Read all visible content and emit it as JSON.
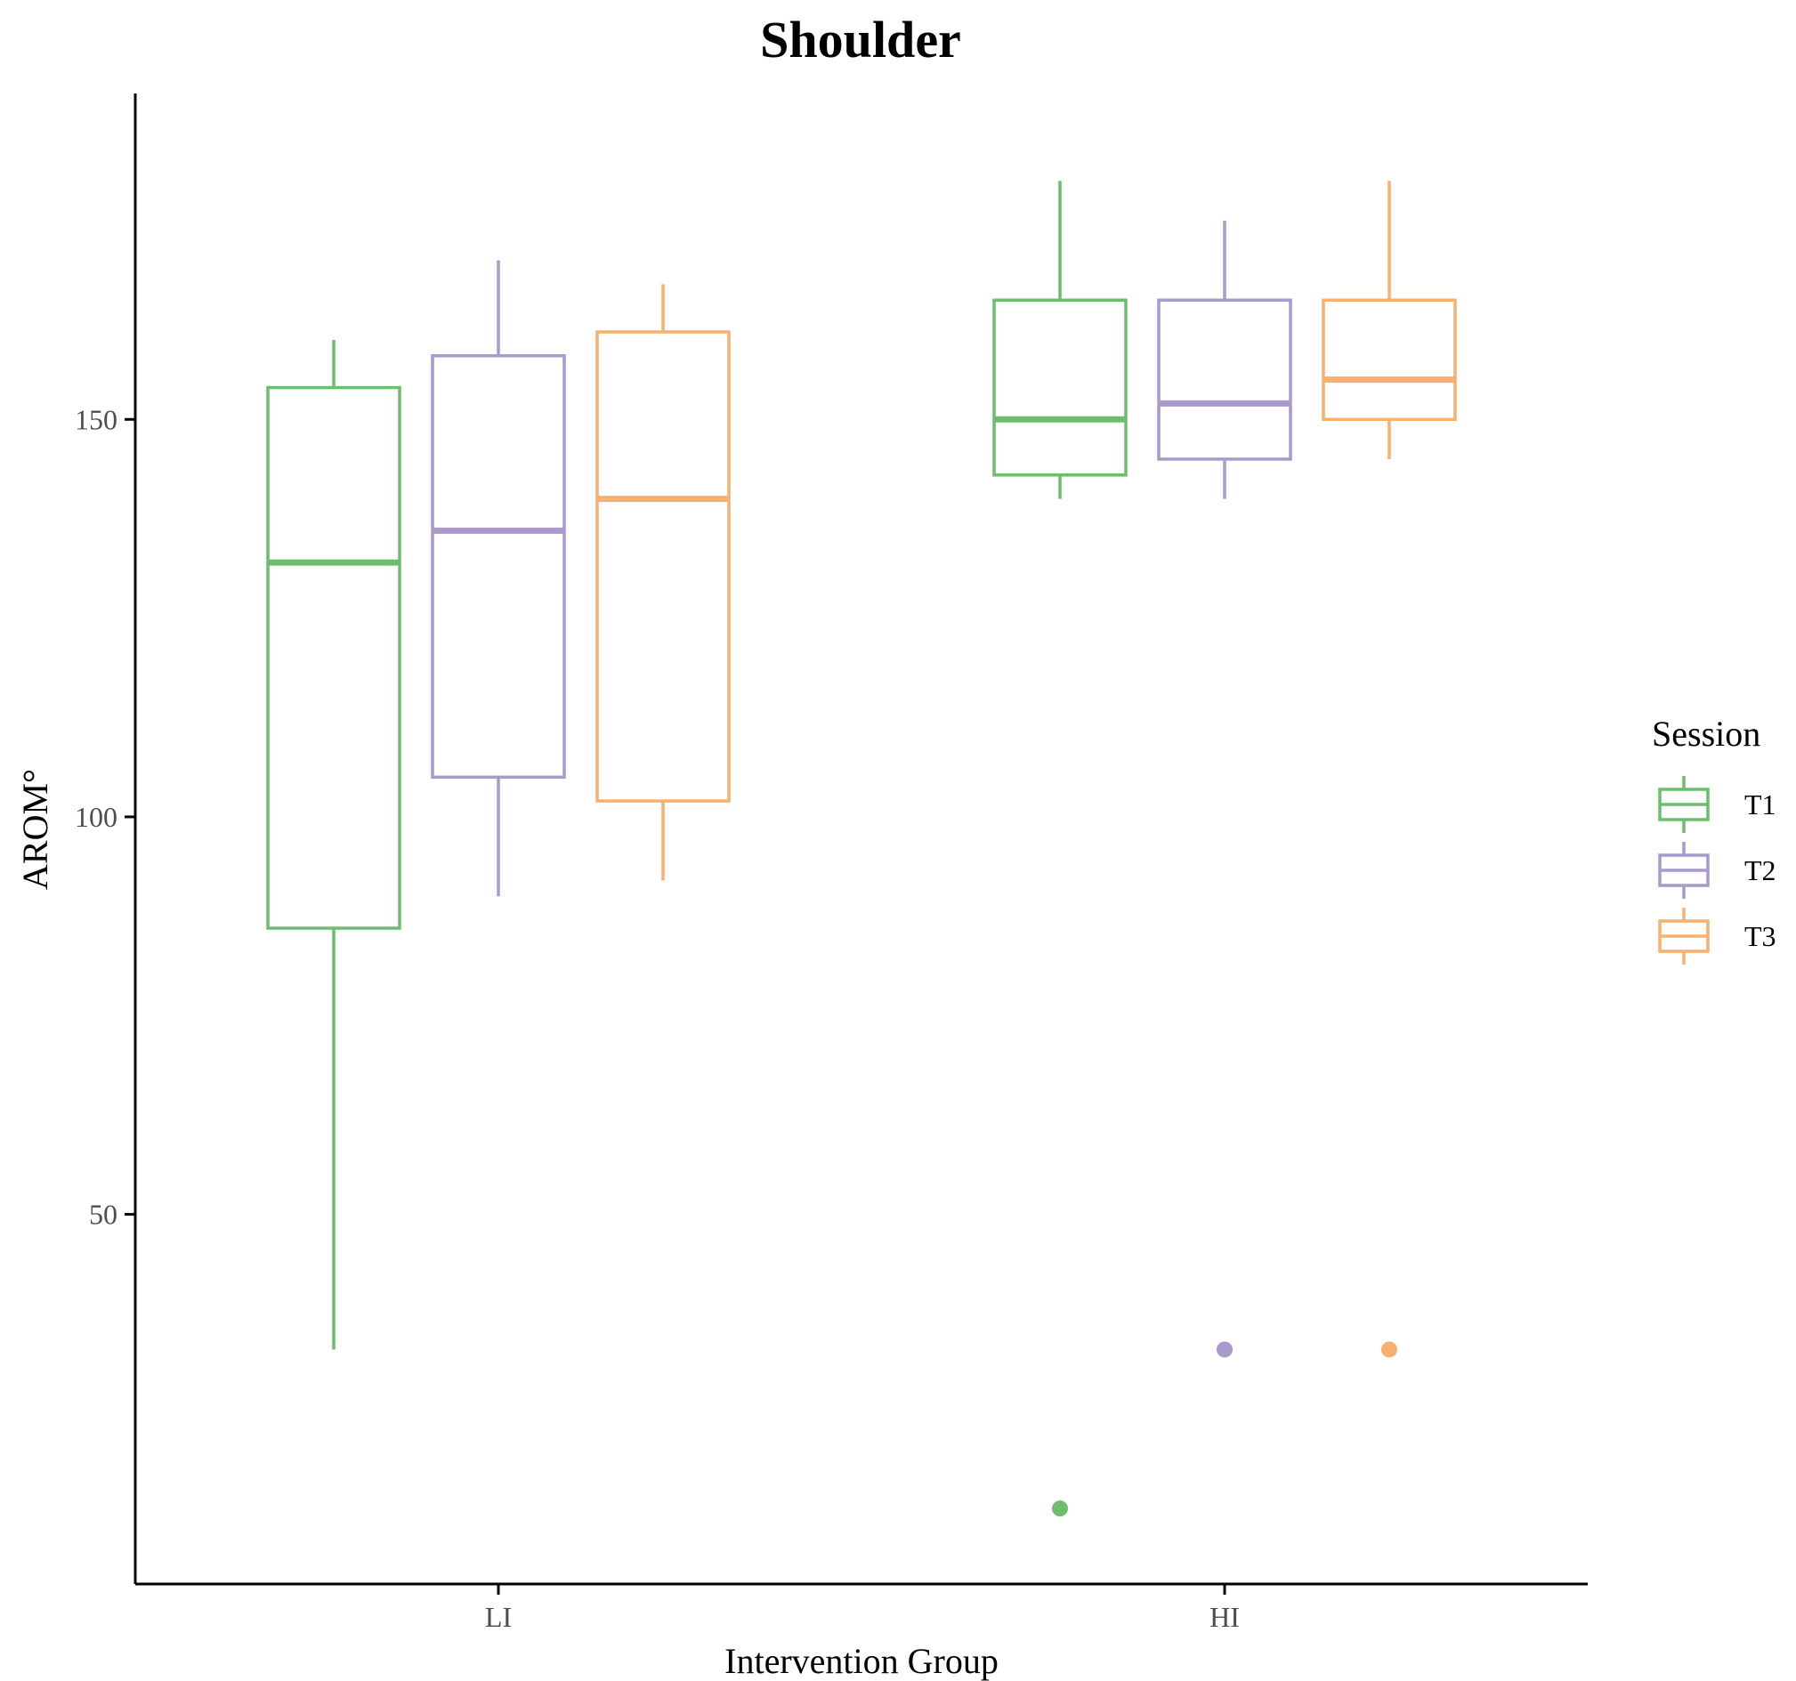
{
  "chart_data": {
    "type": "boxplot",
    "title": "Shoulder",
    "xlabel": "Intervention Group",
    "ylabel": "AROM°",
    "categories": [
      "LI",
      "HI"
    ],
    "ylim": [
      3.5,
      191
    ],
    "yticks": [
      50,
      100,
      150
    ],
    "grid": false,
    "legend": {
      "title": "Session",
      "position": "right"
    },
    "series": [
      {
        "name": "T1",
        "color": "#6cbd6c",
        "boxes": [
          {
            "category": "LI",
            "whisker_low": 33,
            "q1": 86,
            "median": 132,
            "q3": 154,
            "whisker_high": 160,
            "outliers": []
          },
          {
            "category": "HI",
            "whisker_low": 140,
            "q1": 143,
            "median": 150,
            "q3": 165,
            "whisker_high": 180,
            "outliers": [
              13
            ]
          }
        ]
      },
      {
        "name": "T2",
        "color": "#a999cc",
        "boxes": [
          {
            "category": "LI",
            "whisker_low": 90,
            "q1": 105,
            "median": 136,
            "q3": 158,
            "whisker_high": 170,
            "outliers": []
          },
          {
            "category": "HI",
            "whisker_low": 140,
            "q1": 145,
            "median": 152,
            "q3": 165,
            "whisker_high": 175,
            "outliers": [
              33
            ]
          }
        ]
      },
      {
        "name": "T3",
        "color": "#f7b06e",
        "boxes": [
          {
            "category": "LI",
            "whisker_low": 92,
            "q1": 102,
            "median": 140,
            "q3": 161,
            "whisker_high": 167,
            "outliers": []
          },
          {
            "category": "HI",
            "whisker_low": 145,
            "q1": 150,
            "median": 155,
            "q3": 165,
            "whisker_high": 180,
            "outliers": [
              33
            ]
          }
        ]
      }
    ]
  }
}
